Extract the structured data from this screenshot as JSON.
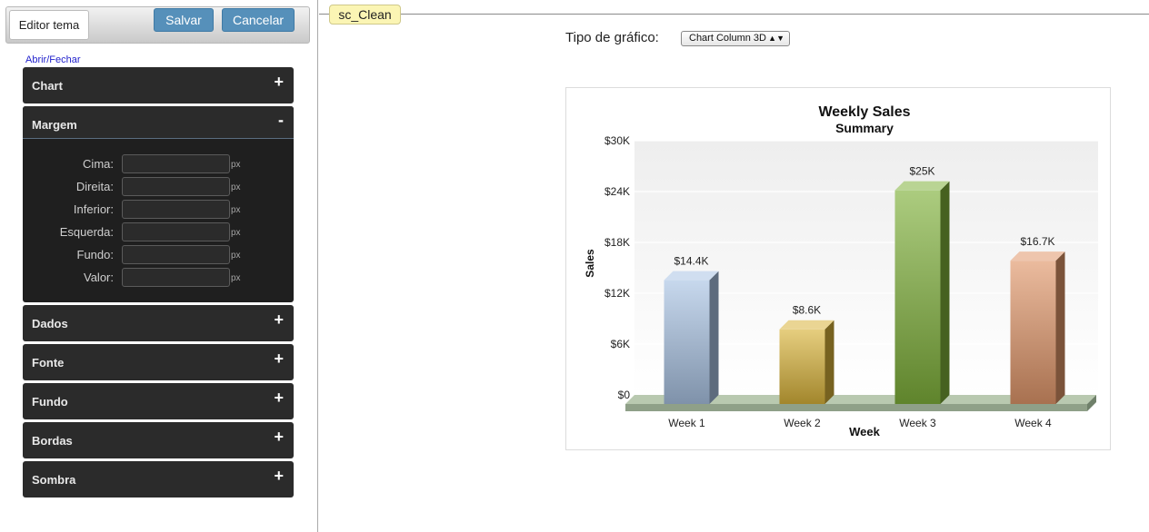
{
  "toolbar": {
    "editor_tab": "Editor tema",
    "save_label": "Salvar",
    "cancel_label": "Cancelar"
  },
  "toggle_label": "Abrir/Fechar",
  "accordion": [
    {
      "label": "Chart",
      "sign": "+"
    },
    {
      "label": "Margem",
      "sign": "-"
    },
    {
      "label": "Dados",
      "sign": "+"
    },
    {
      "label": "Fonte",
      "sign": "+"
    },
    {
      "label": "Fundo",
      "sign": "+"
    },
    {
      "label": "Bordas",
      "sign": "+"
    },
    {
      "label": "Sombra",
      "sign": "+"
    }
  ],
  "margem_fields": [
    {
      "label": "Cima:",
      "unit": "px"
    },
    {
      "label": "Direita:",
      "unit": "px"
    },
    {
      "label": "Inferior:",
      "unit": "px"
    },
    {
      "label": "Esquerda:",
      "unit": "px"
    },
    {
      "label": "Fundo:",
      "unit": "px"
    },
    {
      "label": "Valor:",
      "unit": "px"
    }
  ],
  "theme_name": "sc_Clean",
  "chart_type": {
    "label": "Tipo de gráfico:",
    "selected": "Chart Column 3D"
  },
  "chart_data": {
    "type": "bar",
    "title": "Weekly Sales",
    "subtitle": "Summary",
    "xlabel": "Week",
    "ylabel": "Sales",
    "categories": [
      "Week 1",
      "Week 2",
      "Week 3",
      "Week 4"
    ],
    "values": [
      14400,
      8600,
      25000,
      16700
    ],
    "value_labels": [
      "$14.4K",
      "$8.6K",
      "$25K",
      "$16.7K"
    ],
    "ylim": [
      0,
      30000
    ],
    "yticks": [
      0,
      6000,
      12000,
      18000,
      24000,
      30000
    ],
    "ytick_labels": [
      "$0",
      "$6K",
      "$12K",
      "$18K",
      "$24K",
      "$30K"
    ],
    "colors": [
      "#a9c3e3",
      "#d8b33a",
      "#7fb03a",
      "#e0966a"
    ],
    "grid": true,
    "legend": "none"
  }
}
